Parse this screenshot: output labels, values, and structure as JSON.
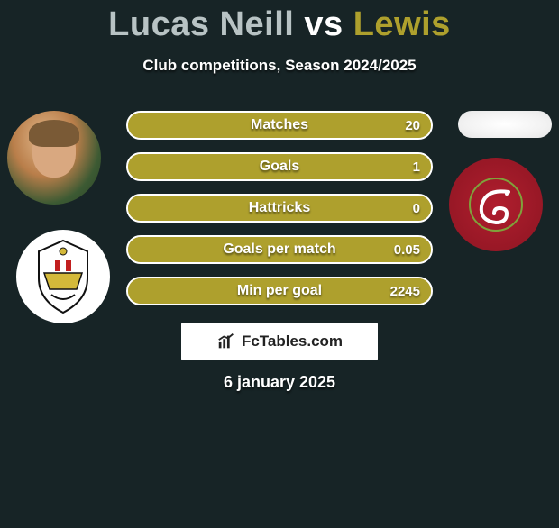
{
  "title_player1": "Lucas Neill",
  "title_vs": "vs",
  "title_player2": "Lewis",
  "title_color_p1": "#b8c3c4",
  "title_color_vs": "#ffffff",
  "title_color_p2": "#aea02d",
  "subtitle": "Club competitions, Season 2024/2025",
  "bars": [
    {
      "label": "Matches",
      "value_right": "20",
      "pct": 100
    },
    {
      "label": "Goals",
      "value_right": "1",
      "pct": 100
    },
    {
      "label": "Hattricks",
      "value_right": "0",
      "pct": 100
    },
    {
      "label": "Goals per match",
      "value_right": "0.05",
      "pct": 100
    },
    {
      "label": "Min per goal",
      "value_right": "2245",
      "pct": 100
    }
  ],
  "bar_fill_color": "#aea02d",
  "bar_border_color": "#ffffff",
  "footer_brand": "FcTables.com",
  "date_text": "6 january 2025",
  "background_color": "#172426",
  "club_right_bg": "#9e1b2a",
  "club_right_ring": "#7fa23b"
}
